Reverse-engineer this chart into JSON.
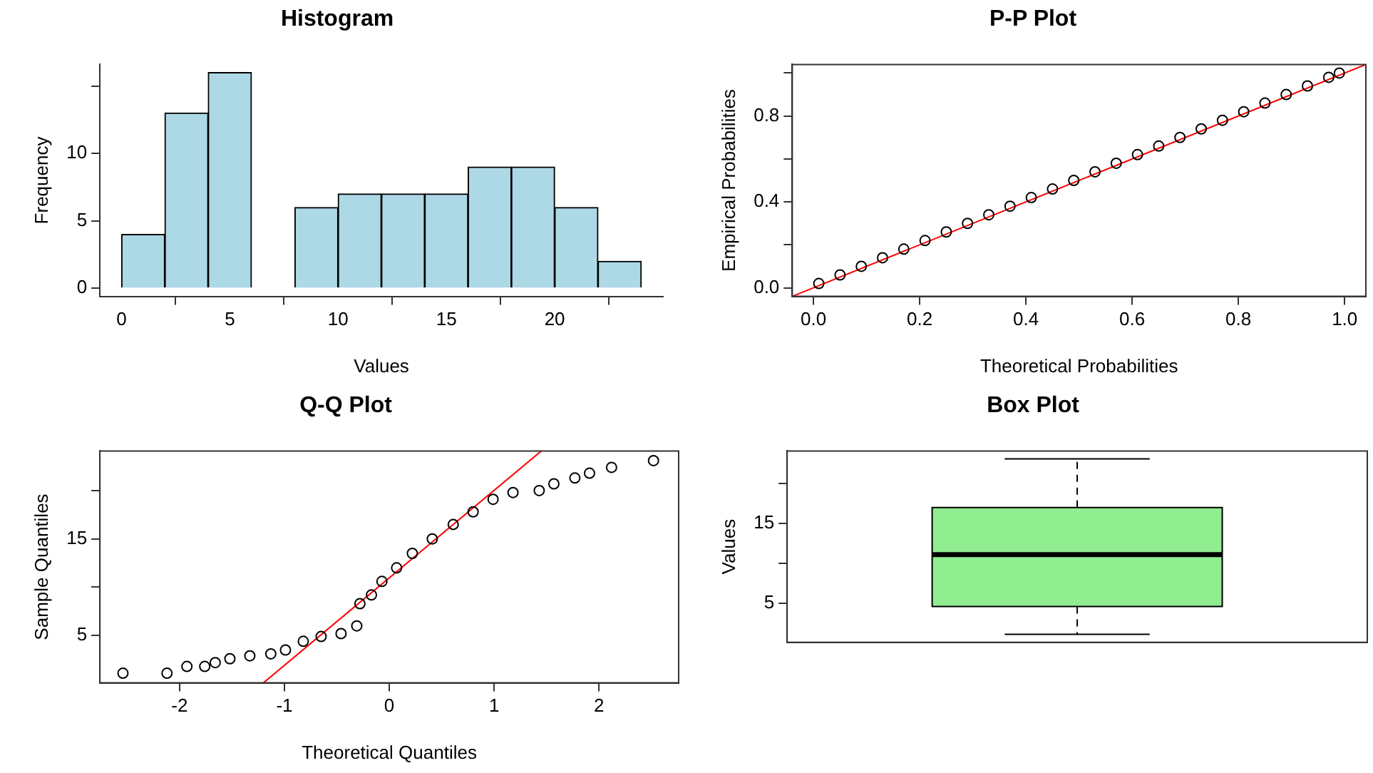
{
  "chart_data": [
    {
      "type": "histogram",
      "title": "Histogram",
      "xlabel": "Values",
      "ylabel": "Frequency",
      "bins": [
        0,
        2,
        4,
        6,
        8,
        10,
        12,
        14,
        16,
        18,
        20,
        22,
        24
      ],
      "values": [
        4,
        13,
        16,
        0,
        6,
        7,
        7,
        7,
        9,
        9,
        6,
        2
      ],
      "color": "#add8e6",
      "xlim": [
        -1,
        25
      ],
      "xticks": [
        0,
        5,
        10,
        15,
        20
      ],
      "ylim": [
        -0.6,
        16.6
      ],
      "yticks": [
        0,
        5,
        10,
        {
          "value": 15,
          "label": null
        }
      ]
    },
    {
      "type": "scatter",
      "title": "P-P Plot",
      "xlabel": "Theoretical Probabilities",
      "ylabel": "Empirical Probabilities",
      "marker": "circle",
      "series": [
        {
          "color": "#000000",
          "x": [
            0.01,
            0.05,
            0.09,
            0.13,
            0.17,
            0.21,
            0.25,
            0.29,
            0.33,
            0.37,
            0.41,
            0.45,
            0.49,
            0.53,
            0.57,
            0.61,
            0.65,
            0.69,
            0.73,
            0.77,
            0.81,
            0.85,
            0.89,
            0.93,
            0.97,
            0.99
          ],
          "values": [
            0.02,
            0.06,
            0.1,
            0.14,
            0.18,
            0.22,
            0.26,
            0.3,
            0.34,
            0.38,
            0.42,
            0.46,
            0.5,
            0.54,
            0.58,
            0.62,
            0.66,
            0.7,
            0.74,
            0.78,
            0.82,
            0.86,
            0.9,
            0.94,
            0.98,
            1.0
          ]
        },
        {
          "type": "line",
          "marker": "none",
          "color": "#ff0000",
          "x": [
            -0.04,
            1.04
          ],
          "values": [
            -0.04,
            1.04
          ]
        }
      ],
      "xlim": [
        -0.04,
        1.04
      ],
      "xticks": [
        {
          "value": 0,
          "label": "0.0"
        },
        {
          "value": 0.2,
          "label": "0.2"
        },
        {
          "value": 0.4,
          "label": "0.4"
        },
        {
          "value": 0.6,
          "label": "0.6"
        },
        {
          "value": 0.8,
          "label": "0.8"
        },
        {
          "value": 1,
          "label": "1.0"
        }
      ],
      "ylim": [
        -0.04,
        1.04
      ],
      "yticks": [
        {
          "value": 0,
          "label": "0.0"
        },
        {
          "value": 0.2,
          "label": null
        },
        {
          "value": 0.4,
          "label": "0.4"
        },
        {
          "value": 0.6,
          "label": null
        },
        {
          "value": 0.8,
          "label": "0.8"
        },
        {
          "value": 1,
          "label": null
        }
      ]
    },
    {
      "type": "scatter",
      "title": "Q-Q Plot",
      "xlabel": "Theoretical Quantiles",
      "ylabel": "Sample Quantiles",
      "marker": "circle",
      "series": [
        {
          "color": "#000000",
          "x": [
            -2.54,
            -2.12,
            -1.93,
            -1.76,
            -1.66,
            -1.52,
            -1.33,
            -1.13,
            -0.99,
            -0.82,
            -0.65,
            -0.46,
            -0.31,
            -0.28,
            -0.17,
            -0.07,
            0.07,
            0.22,
            0.41,
            0.61,
            0.8,
            0.99,
            1.18,
            1.43,
            1.57,
            1.77,
            1.91,
            2.12,
            2.52
          ],
          "values": [
            1.1,
            1.1,
            1.8,
            1.8,
            2.2,
            2.6,
            2.9,
            3.1,
            3.5,
            4.4,
            4.9,
            5.2,
            6.0,
            8.3,
            9.2,
            10.6,
            12.0,
            13.5,
            15.0,
            16.5,
            17.8,
            19.1,
            19.8,
            20.0,
            20.7,
            21.3,
            21.8,
            22.4,
            23.1
          ]
        },
        {
          "type": "line",
          "marker": "none",
          "color": "#ff0000",
          "x": [
            -1.2,
            1.45
          ],
          "values": [
            0.1,
            24.1
          ]
        }
      ],
      "xlim": [
        -2.76,
        2.76
      ],
      "xticks": [
        -2,
        -1,
        0,
        1,
        2
      ],
      "ylim": [
        0.1,
        24.1
      ],
      "yticks": [
        5,
        {
          "value": 10,
          "label": null
        },
        15,
        {
          "value": 20,
          "label": null
        }
      ]
    },
    {
      "type": "box",
      "title": "Box Plot",
      "ylabel": "Values",
      "categories": [
        null
      ],
      "boxes": [
        {
          "low": 1.1,
          "q1": 4.6,
          "median": 11.1,
          "q3": 17.0,
          "high": 23.1
        }
      ],
      "color": "#90ee90",
      "ylim": [
        0.1,
        24.1
      ],
      "yticks": [
        5,
        {
          "value": 10,
          "label": null
        },
        15,
        {
          "value": 20,
          "label": null
        }
      ]
    }
  ]
}
